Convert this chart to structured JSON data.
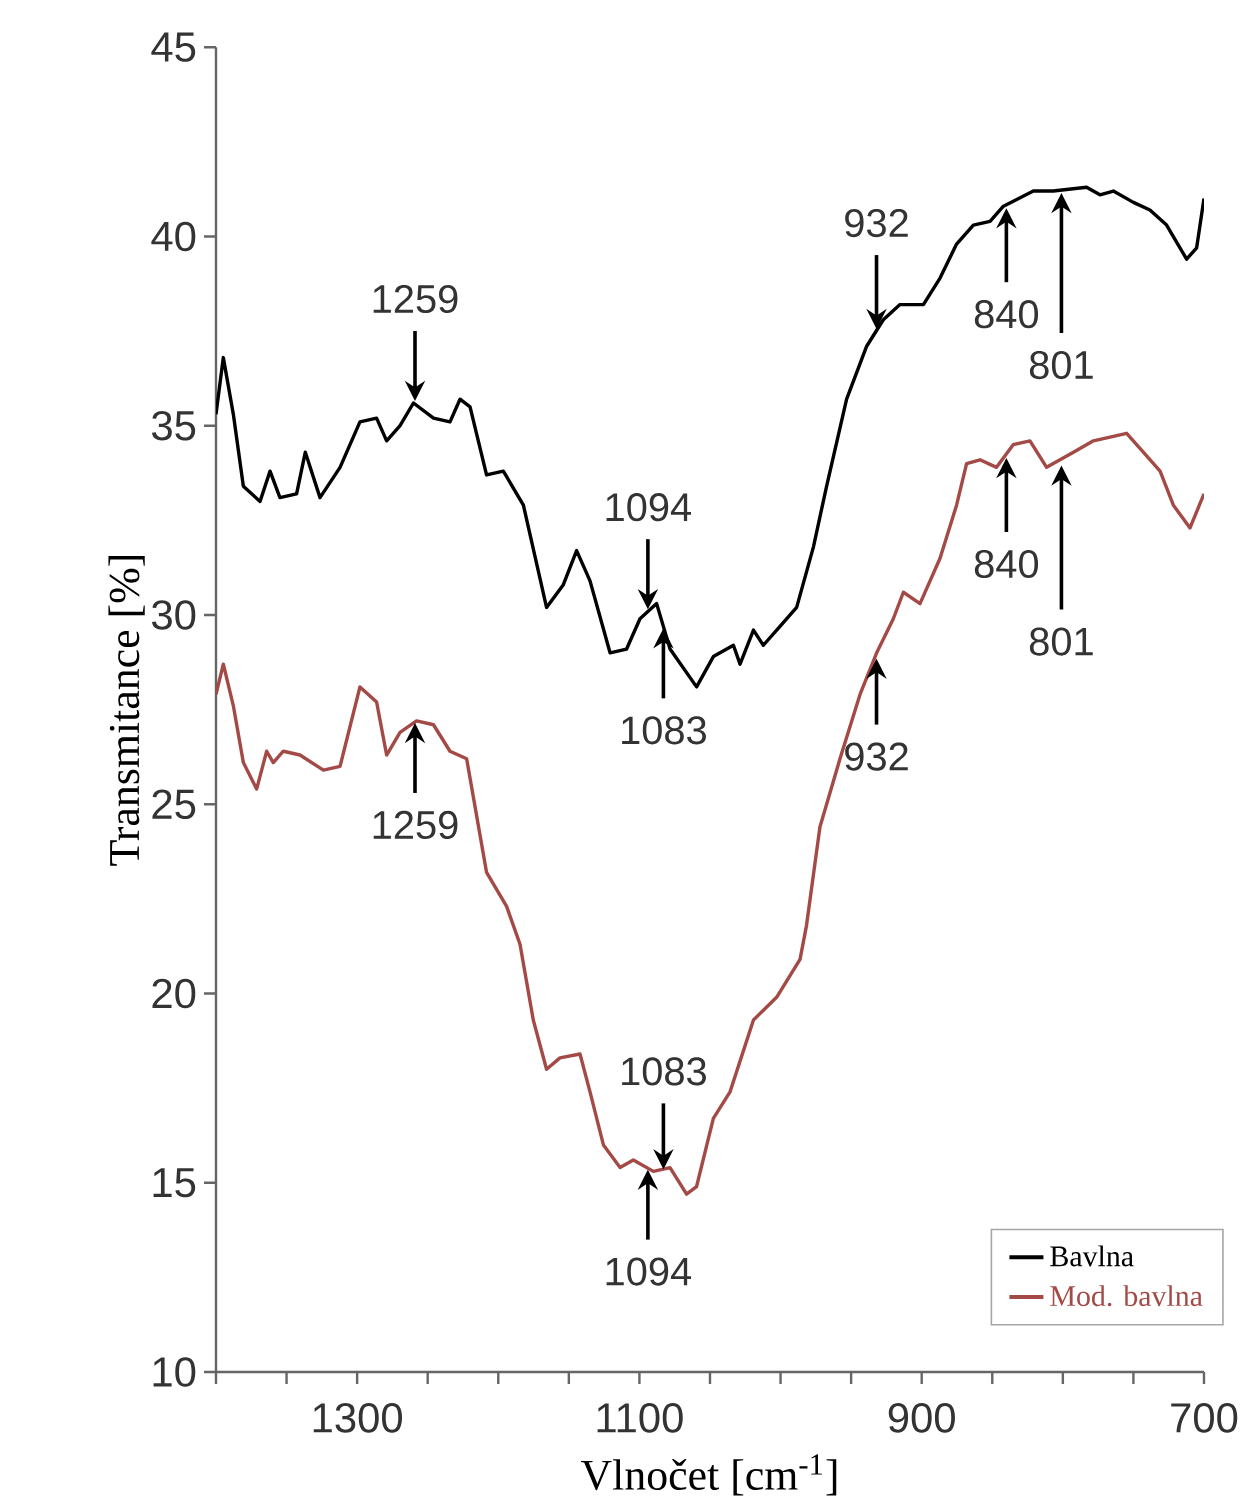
{
  "chart_data": {
    "type": "line",
    "xlabel": "Vlnočet [cm$^{-1}$]",
    "ylabel": "Transmitance [%]",
    "xlim": [
      1400,
      700
    ],
    "ylim": [
      10,
      45
    ],
    "xticks": [
      {
        "value": 1400,
        "label": null
      },
      {
        "value": 1350,
        "label": null
      },
      1300,
      {
        "value": 1250,
        "label": null
      },
      {
        "value": 1200,
        "label": null
      },
      {
        "value": 1150,
        "label": null
      },
      1100,
      {
        "value": 1050,
        "label": null
      },
      {
        "value": 1000,
        "label": null
      },
      {
        "value": 950,
        "label": null
      },
      900,
      {
        "value": 850,
        "label": null
      },
      {
        "value": 800,
        "label": null
      },
      {
        "value": 750,
        "label": null
      },
      700
    ],
    "yticks": [
      10,
      15,
      20,
      25,
      30,
      35,
      40,
      45
    ],
    "legend": "bottom right",
    "series": [
      {
        "name": "Bavlna",
        "color": "#000000",
        "x": [
          1400,
          1394.8,
          1387.7,
          1380.6,
          1368.8,
          1361.7,
          1354.7,
          1342.9,
          1336.7,
          1326.3,
          1312.1,
          1298,
          1286.2,
          1279.1,
          1269.6,
          1260.1,
          1245.9,
          1234.2,
          1227.1,
          1220,
          1208.3,
          1196.4,
          1182.2,
          1165.8,
          1153.9,
          1144.5,
          1135,
          1120.8,
          1109.1,
          1099.6,
          1087.8,
          1078.3,
          1059.5,
          1047.6,
          1033.4,
          1028.7,
          1019.2,
          1012.2,
          1000.4,
          988.6,
          976.7,
          967.4,
          953.2,
          939,
          927.2,
          915.4,
          898.8,
          887,
          875.3,
          863.4,
          851.6,
          842.1,
          820.9,
          806.8,
          783.2,
          773.7,
          764.2,
          750,
          738.3,
          726.5,
          712.3,
          705.2,
          700
        ],
        "values": [
          35.3,
          36.8,
          35.3,
          33.4,
          33.0,
          33.8,
          33.1,
          33.2,
          34.3,
          33.1,
          33.9,
          35.1,
          35.2,
          34.6,
          35.0,
          35.6,
          35.2,
          35.1,
          35.7,
          35.5,
          33.7,
          33.8,
          32.9,
          30.2,
          30.8,
          31.7,
          30.9,
          29.0,
          29.1,
          29.9,
          30.3,
          29.1,
          28.1,
          28.9,
          29.2,
          28.7,
          29.6,
          29.2,
          29.7,
          30.2,
          31.8,
          33.4,
          35.7,
          37.1,
          37.8,
          38.2,
          38.2,
          38.9,
          39.8,
          40.3,
          40.4,
          40.8,
          41.2,
          41.2,
          41.3,
          41.1,
          41.2,
          40.9,
          40.7,
          40.3,
          39.4,
          39.7,
          41.0
        ]
      },
      {
        "name": "Mod. bavlna",
        "color": "#a34a47",
        "x": [
          1400,
          1394.8,
          1387.7,
          1380.6,
          1371.2,
          1364.1,
          1359.4,
          1352.3,
          1340.5,
          1323.9,
          1312.1,
          1298,
          1286.2,
          1279.1,
          1269.6,
          1257.9,
          1245.9,
          1234.2,
          1222.4,
          1208.3,
          1194.1,
          1184.6,
          1175.2,
          1165.8,
          1156.3,
          1142.1,
          1135,
          1125.5,
          1113.7,
          1104.3,
          1090.1,
          1078.3,
          1066.6,
          1059.5,
          1047.6,
          1035.8,
          1019.2,
          1002.8,
          986.2,
          981.6,
          972.1,
          957.9,
          943.7,
          931.9,
          920.1,
          913,
          901.2,
          887,
          875.3,
          868.2,
          858.7,
          847,
          835.2,
          823.3,
          811.5,
          792.5,
          778.3,
          754.8,
          743,
          731.1,
          721.7,
          709.9,
          700
        ],
        "values": [
          27.9,
          28.7,
          27.6,
          26.1,
          25.4,
          26.4,
          26.1,
          26.4,
          26.3,
          25.9,
          26.0,
          28.1,
          27.7,
          26.3,
          26.9,
          27.2,
          27.1,
          26.4,
          26.2,
          23.2,
          22.3,
          21.3,
          19.3,
          18.0,
          18.3,
          18.4,
          17.4,
          16.0,
          15.4,
          15.6,
          15.3,
          15.4,
          14.7,
          14.9,
          16.7,
          17.4,
          19.3,
          19.9,
          20.9,
          21.8,
          24.4,
          26.2,
          27.9,
          29.0,
          29.9,
          30.6,
          30.3,
          31.5,
          32.9,
          34.0,
          34.1,
          33.9,
          34.5,
          34.6,
          33.9,
          34.3,
          34.6,
          34.8,
          34.3,
          33.8,
          32.9,
          32.3,
          33.2
        ]
      }
    ],
    "annotations": [
      {
        "text": "1259",
        "x": 1259,
        "y": 35.6
      },
      {
        "text": "1094",
        "x": 1094,
        "y": 30.1
      },
      {
        "text": "932",
        "x": 932,
        "y": 37.5
      },
      {
        "text": "1083",
        "x": 1083,
        "y": 29.7
      },
      {
        "text": "840",
        "x": 840,
        "y": 40.8
      },
      {
        "text": "801",
        "x": 801,
        "y": 41.2
      },
      {
        "text": "1259",
        "x": 1259,
        "y": 27.2
      },
      {
        "text": "1083",
        "x": 1083,
        "y": 15.3
      },
      {
        "text": "1094",
        "x": 1094,
        "y": 15.4
      },
      {
        "text": "932",
        "x": 932,
        "y": 28.9
      },
      {
        "text": "840",
        "x": 840,
        "y": 34.2
      },
      {
        "text": "801",
        "x": 801,
        "y": 34.0
      }
    ]
  }
}
